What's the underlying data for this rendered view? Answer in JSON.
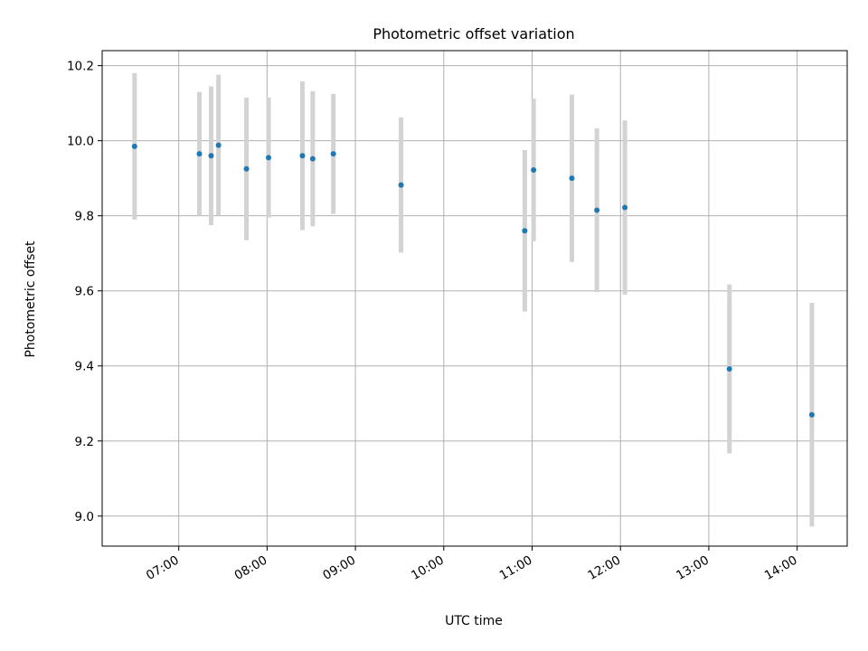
{
  "chart_data": {
    "type": "scatter",
    "title": "Photometric offset variation",
    "xlabel": "UTC time",
    "ylabel": "Photometric offset",
    "x_tick_labels": [
      "07:00",
      "08:00",
      "09:00",
      "10:00",
      "11:00",
      "12:00",
      "13:00",
      "14:00"
    ],
    "y_tick_labels": [
      "9.0",
      "9.2",
      "9.4",
      "9.6",
      "9.8",
      "10.0",
      "10.2"
    ],
    "xlim": [
      "06:08",
      "14:34"
    ],
    "ylim": [
      8.92,
      10.24
    ],
    "grid": true,
    "point_color": "#1f77b4",
    "errorbar_color": "#d3d3d3",
    "points": [
      {
        "x": "06:30",
        "y": 9.985,
        "err": 0.195
      },
      {
        "x": "07:14",
        "y": 9.965,
        "err": 0.165
      },
      {
        "x": "07:22",
        "y": 9.96,
        "err": 0.185
      },
      {
        "x": "07:27",
        "y": 9.988,
        "err": 0.188
      },
      {
        "x": "07:46",
        "y": 9.925,
        "err": 0.19
      },
      {
        "x": "08:01",
        "y": 9.955,
        "err": 0.16
      },
      {
        "x": "08:24",
        "y": 9.96,
        "err": 0.198
      },
      {
        "x": "08:31",
        "y": 9.952,
        "err": 0.18
      },
      {
        "x": "08:45",
        "y": 9.965,
        "err": 0.16
      },
      {
        "x": "09:31",
        "y": 9.882,
        "err": 0.18
      },
      {
        "x": "10:55",
        "y": 9.76,
        "err": 0.215
      },
      {
        "x": "11:01",
        "y": 9.922,
        "err": 0.19
      },
      {
        "x": "11:27",
        "y": 9.9,
        "err": 0.223
      },
      {
        "x": "11:44",
        "y": 9.815,
        "err": 0.218
      },
      {
        "x": "12:03",
        "y": 9.822,
        "err": 0.232
      },
      {
        "x": "13:14",
        "y": 9.392,
        "err": 0.225
      },
      {
        "x": "14:10",
        "y": 9.27,
        "err": 0.298
      }
    ]
  }
}
